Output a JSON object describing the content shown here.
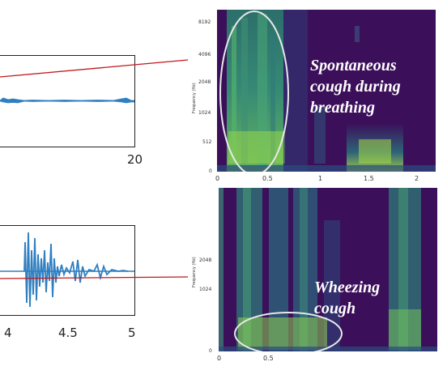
{
  "top_waveform": {
    "x_tick_label": "20"
  },
  "bottom_waveform": {
    "x_tick_labels": [
      "4",
      "4.5",
      "5"
    ]
  },
  "top_spectrogram": {
    "y_ticks": [
      "8192",
      "4096",
      "2048",
      "1024",
      "512",
      "0"
    ],
    "y_axis_label": "Frequency (Hz)",
    "x_ticks": [
      "0",
      "0.5",
      "1",
      "1.5",
      "2"
    ],
    "caption_lines": [
      "Spontaneous",
      "cough during",
      "breathing"
    ]
  },
  "bottom_spectrogram": {
    "y_ticks": [
      "2048",
      "1024",
      "0"
    ],
    "y_axis_label": "Frequency (Hz)",
    "x_ticks": [
      "0",
      "0.5"
    ],
    "caption_lines": [
      "Wheezing",
      "cough"
    ]
  },
  "colors": {
    "connector": "#c0171c",
    "waveform": "#2f7fc1",
    "spectrogram_bg": "#3b0f5a",
    "annotation_ellipse": "#e8e8e8"
  }
}
